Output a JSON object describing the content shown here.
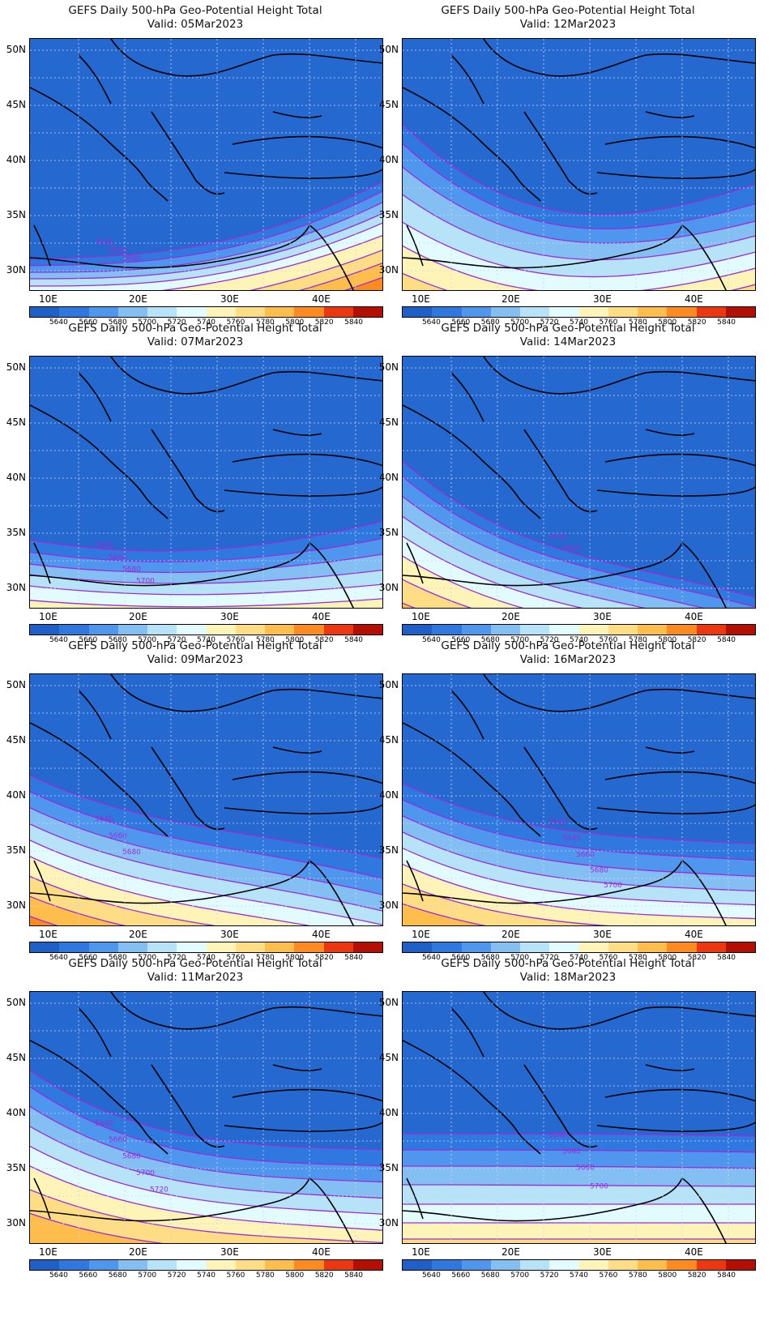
{
  "panel_title": "GEFS Daily 500-hPa Geo-Potential Height Total",
  "lat_labels": [
    "50N",
    "45N",
    "40N",
    "35N",
    "30N"
  ],
  "lon_labels": [
    "10E",
    "20E",
    "30E",
    "40E"
  ],
  "colorbar": {
    "labels": [
      "5640",
      "5660",
      "5680",
      "5700",
      "5720",
      "5740",
      "5760",
      "5780",
      "5800",
      "5820",
      "5840"
    ],
    "colors": [
      "#1f5fc8",
      "#2e78e0",
      "#4f97ee",
      "#84bff3",
      "#b6e3f8",
      "#e2fbff",
      "#fff4b8",
      "#ffdd85",
      "#ffbd4c",
      "#ff8a20",
      "#ec3710",
      "#b40f02"
    ]
  },
  "contour_color": "#9b2cd8",
  "panels": [
    {
      "valid": "Valid: 05Mar2023",
      "contour_labels": [
        "5640",
        "5660",
        "5680"
      ]
    },
    {
      "valid": "Valid: 12Mar2023",
      "contour_labels": []
    },
    {
      "valid": "Valid: 07Mar2023",
      "contour_labels": [
        "5640",
        "5660",
        "5680",
        "5700"
      ]
    },
    {
      "valid": "Valid: 14Mar2023",
      "contour_labels": [
        "5640",
        "5660"
      ]
    },
    {
      "valid": "Valid: 09Mar2023",
      "contour_labels": [
        "5640",
        "5660",
        "5680"
      ]
    },
    {
      "valid": "Valid: 16Mar2023",
      "contour_labels": [
        "5640",
        "5640",
        "5660",
        "5680",
        "5700"
      ]
    },
    {
      "valid": "Valid: 11Mar2023",
      "contour_labels": [
        "5640",
        "5660",
        "5680",
        "5700",
        "5720"
      ]
    },
    {
      "valid": "Valid: 18Mar2023",
      "contour_labels": [
        "5640",
        "5640",
        "5660",
        "5700"
      ]
    }
  ]
}
